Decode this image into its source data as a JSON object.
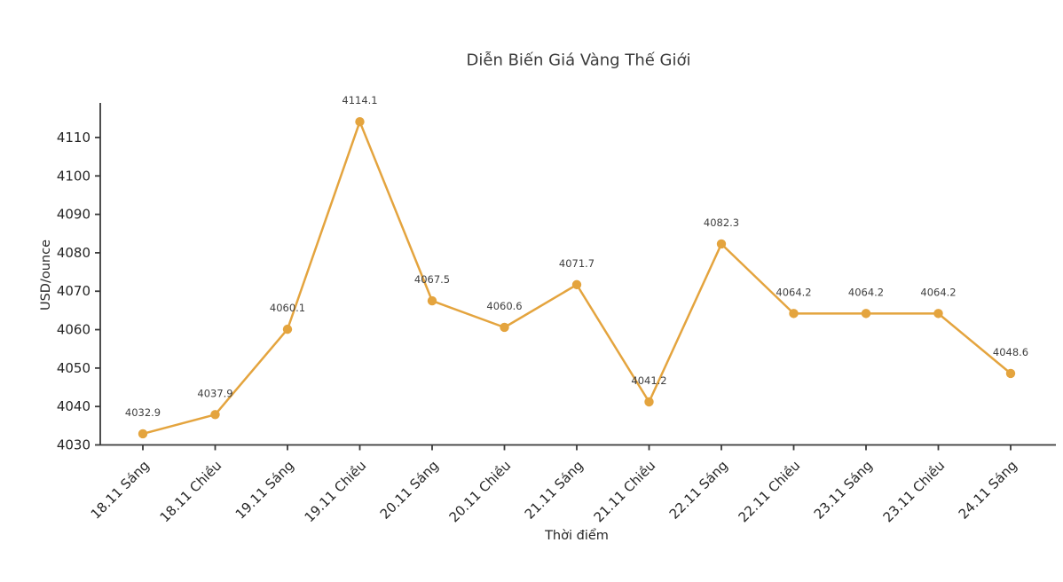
{
  "chart_data": {
    "type": "line",
    "title": "Diễn Biến Giá Vàng Thế Giới",
    "xlabel": "Thời điểm",
    "ylabel": "USD/ounce",
    "categories": [
      "18.11 Sáng",
      "18.11 Chiều",
      "19.11 Sáng",
      "19.11 Chiều",
      "20.11 Sáng",
      "20.11 Chiều",
      "21.11 Sáng",
      "21.11 Chiều",
      "22.11 Sáng",
      "22.11 Chiều",
      "23.11 Sáng",
      "23.11 Chiều",
      "24.11 Sáng"
    ],
    "values": [
      4032.9,
      4037.9,
      4060.1,
      4114.1,
      4067.5,
      4060.6,
      4071.7,
      4041.2,
      4082.3,
      4064.2,
      4064.2,
      4064.2,
      4048.6
    ],
    "point_labels": [
      "4032.9",
      "4037.9",
      "4060.1",
      "4114.1",
      "4067.5",
      "4060.6",
      "4071.7",
      "4041.2",
      "4082.3",
      "4064.2",
      "4064.2",
      "4064.2",
      "4048.6"
    ],
    "ylim": [
      4030,
      4119
    ],
    "yticks": [
      4030,
      4040,
      4050,
      4060,
      4070,
      4080,
      4090,
      4100,
      4110
    ],
    "xtick_rotation_deg": 45,
    "grid": false,
    "legend_position": "none",
    "line_color": "#E4A43E",
    "marker": "circle",
    "axis_color": "#3a3a3a",
    "tick_label_color": "#262626",
    "point_label_color": "#3f3f3f"
  }
}
